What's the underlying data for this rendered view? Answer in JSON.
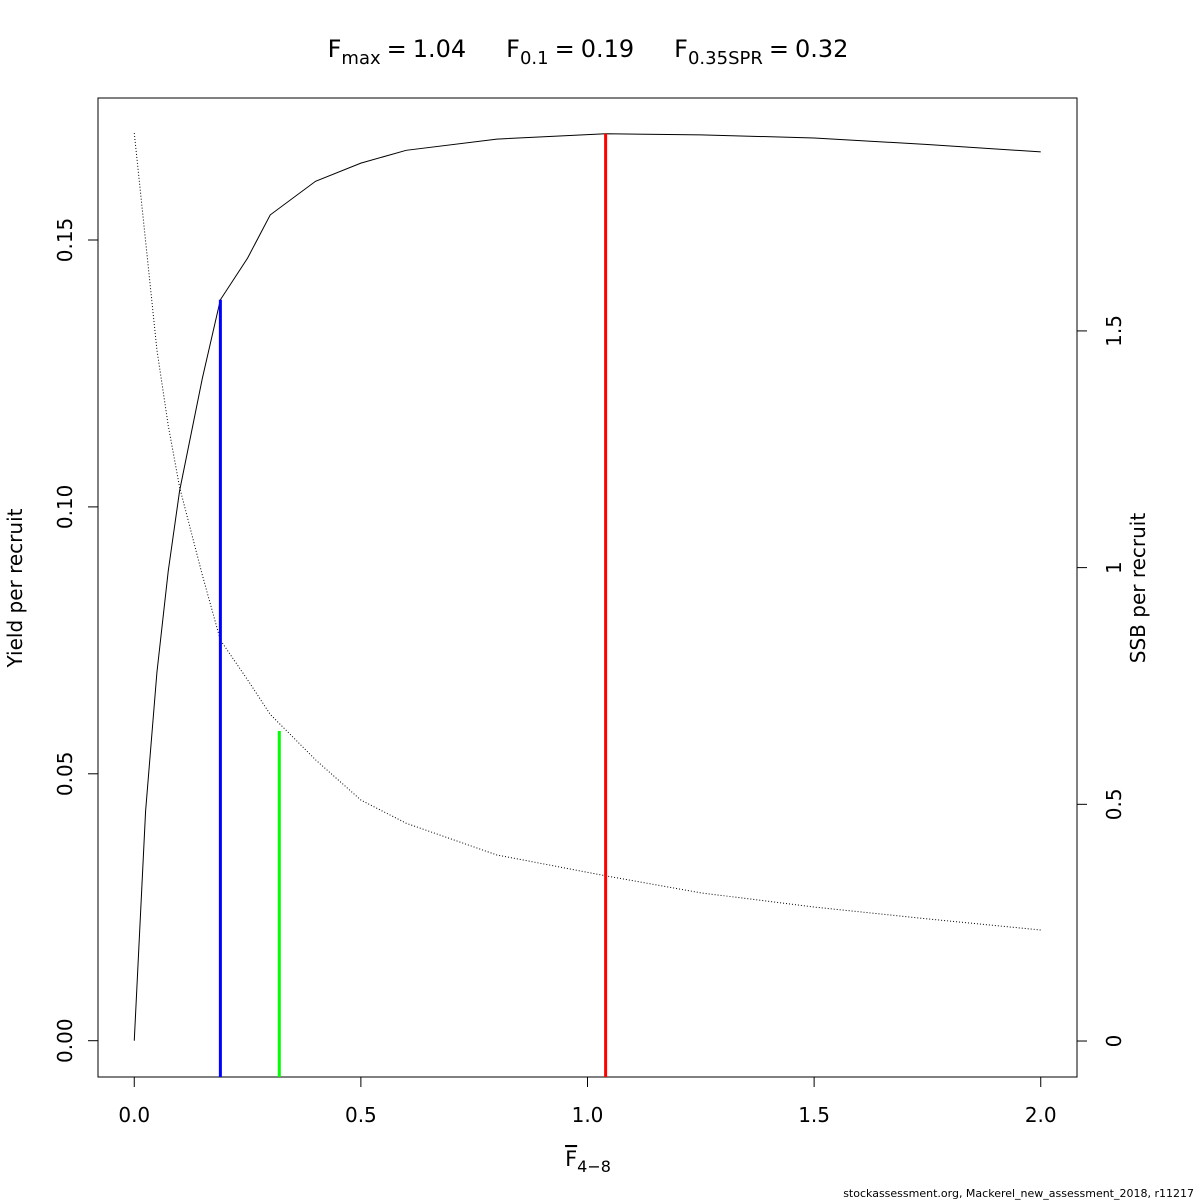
{
  "chart_data": {
    "type": "line",
    "reference_points": [
      {
        "symbol": "F",
        "subscript": "max",
        "operator": "=",
        "value": 1.04,
        "color": "#ff0000",
        "curve_value": 0.1699,
        "axis": "y"
      },
      {
        "symbol": "F",
        "subscript": "0.1",
        "operator": "=",
        "value": 0.19,
        "color": "#0000ff",
        "curve_value": 0.1388,
        "axis": "y"
      },
      {
        "symbol": "F",
        "subscript": "0.35SPR",
        "operator": "=",
        "value": 0.32,
        "color": "#00ff00",
        "curve_value": 0.655,
        "axis": "y2"
      }
    ],
    "xlabel": {
      "symbol": "F",
      "subscript": "4−8"
    },
    "ylabel": "Yield per recruit",
    "y2label": "SSB per recruit",
    "footer": "stockassessment.org, Mackerel_new_assessment_2018, r11217",
    "x": [
      0,
      0.025,
      0.05,
      0.075,
      0.1,
      0.15,
      0.19,
      0.25,
      0.3,
      0.4,
      0.5,
      0.6,
      0.8,
      1.04,
      1.25,
      1.5,
      1.75,
      2.0
    ],
    "series": [
      {
        "name": "Yield per recruit",
        "color": "#000000",
        "dash": "solid",
        "values": [
          0,
          0.043,
          0.069,
          0.088,
          0.103,
          0.124,
          0.1388,
          0.1466,
          0.1547,
          0.161,
          0.1644,
          0.1668,
          0.1689,
          0.1699,
          0.1697,
          0.1691,
          0.1679,
          0.1665
        ]
      },
      {
        "name": "SSB per recruit",
        "color": "#000000",
        "dash": "dotted",
        "axis": "y2",
        "values": [
          1.918,
          1.69,
          1.46,
          1.3,
          1.17,
          0.985,
          0.847,
          0.763,
          0.69,
          0.594,
          0.509,
          0.46,
          0.393,
          0.349,
          0.313,
          0.283,
          0.258,
          0.2345
        ]
      }
    ],
    "xlim": [
      -0.08,
      2.08
    ],
    "xticks": [
      {
        "value": 0,
        "label": "0.0"
      },
      {
        "value": 0.5,
        "label": "0.5"
      },
      {
        "value": 1,
        "label": "1.0"
      },
      {
        "value": 1.5,
        "label": "1.5"
      },
      {
        "value": 2,
        "label": "2.0"
      }
    ],
    "ylim": [
      -0.0068,
      0.1766
    ],
    "yticks": [
      {
        "value": 0,
        "label": "0.00"
      },
      {
        "value": 0.05,
        "label": "0.05"
      },
      {
        "value": 0.1,
        "label": "0.10"
      },
      {
        "value": 0.15,
        "label": "0.15"
      }
    ],
    "y2lim": [
      -0.076,
      1.992
    ],
    "y2ticks": [
      0,
      0.5,
      1,
      1.5
    ]
  }
}
